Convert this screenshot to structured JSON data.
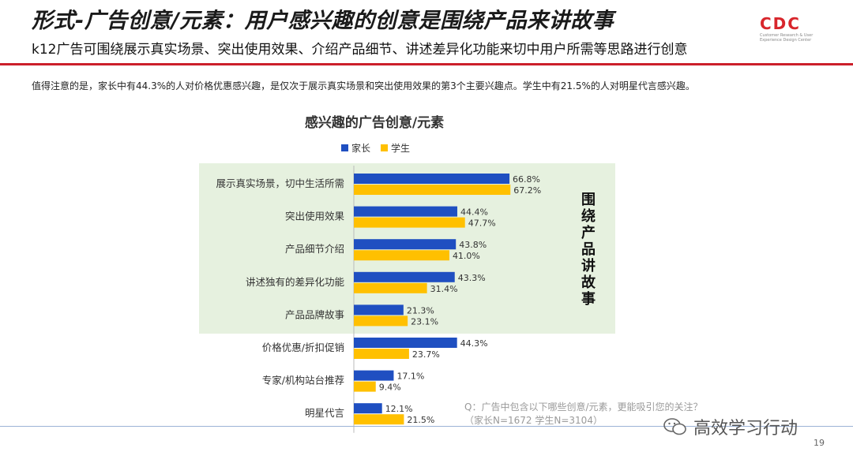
{
  "header": {
    "title": "形式-广告创意/元素：用户感兴趣的创意是围绕产品来讲故事",
    "subtitle": "k12广告可围绕展示真实场景、突出使用效果、介绍产品细节、讲述差异化功能来切中用户所需等思路进行创意",
    "note": "值得注意的是，家长中有44.3%的人对价格优惠感兴趣，是仅次于展示真实场景和突出使用效果的第3个主要兴趣点。学生中有21.5%的人对明星代言感兴趣。"
  },
  "logo": {
    "text": "CDC",
    "subtext": "Customer Research & User Experience Design Center",
    "color": "#d8262c"
  },
  "chart_data": {
    "type": "bar",
    "orientation": "horizontal",
    "title": "感兴趣的广告创意/元素",
    "legend_position": "top",
    "categories": [
      "展示真实场景，切中生活所需",
      "突出使用效果",
      "产品细节介绍",
      "讲述独有的差异化功能",
      "产品品牌故事",
      "价格优惠/折扣促销",
      "专家/机构站台推荐",
      "明星代言"
    ],
    "series": [
      {
        "name": "家长",
        "color": "#1f4fc1",
        "values": [
          66.8,
          44.4,
          43.8,
          43.3,
          21.3,
          44.3,
          17.1,
          12.1
        ]
      },
      {
        "name": "学生",
        "color": "#ffc000",
        "values": [
          67.2,
          47.7,
          41.0,
          31.4,
          23.1,
          23.7,
          9.4,
          21.5
        ]
      }
    ],
    "value_suffix": "%",
    "xlim": [
      0,
      100
    ],
    "highlight": {
      "label": "围绕产品讲故事",
      "categories_count": 5,
      "color": "#e6f1df"
    }
  },
  "footer": {
    "question_line1": "Q：广告中包含以下哪些创意/元素，更能吸引您的关注？",
    "question_line2": "（家长N=1672     学生N=3104）",
    "page_number": "19",
    "watermark": "高效学习行动"
  }
}
